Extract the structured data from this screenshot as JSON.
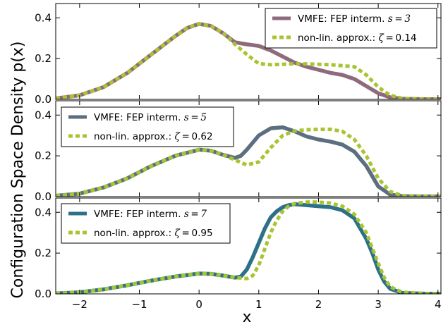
{
  "figure": {
    "ylabel": "Configuration Space Density p(x)",
    "xlabel": "x"
  },
  "colors": {
    "panel1_line": "#8e6a7c",
    "panel2_line": "#5c6f80",
    "panel3_line": "#2d7088",
    "approx": "#a8c431"
  },
  "chart_data": [
    {
      "type": "line",
      "xlim": [
        -2.4,
        4.05
      ],
      "ylim": [
        0,
        0.47
      ],
      "x_ticks": [
        -2,
        -1,
        0,
        1,
        2,
        3,
        4
      ],
      "x_tick_labels": [
        "",
        "",
        "",
        "",
        "",
        "",
        ""
      ],
      "y_ticks": [
        0,
        0.2,
        0.4
      ],
      "y_tick_labels": [
        "0.0",
        "0.2",
        "0.4"
      ],
      "grid": false,
      "legend_position": "top-right",
      "series": [
        {
          "name": "VMFE: FEP interm. s = 3",
          "legend_main": "VMFE: FEP interm. ",
          "legend_math": "s = 3",
          "legend_tail": "",
          "style": "solid",
          "x": [
            -2.4,
            -2.0,
            -1.6,
            -1.2,
            -0.8,
            -0.4,
            -0.2,
            0.0,
            0.2,
            0.4,
            0.6,
            0.8,
            1.0,
            1.2,
            1.4,
            1.6,
            1.8,
            2.0,
            2.2,
            2.4,
            2.6,
            2.8,
            3.0,
            3.2,
            3.4,
            3.8,
            4.05
          ],
          "y": [
            0.005,
            0.02,
            0.06,
            0.13,
            0.22,
            0.31,
            0.35,
            0.37,
            0.36,
            0.325,
            0.28,
            0.27,
            0.262,
            0.24,
            0.21,
            0.18,
            0.16,
            0.145,
            0.13,
            0.12,
            0.1,
            0.065,
            0.03,
            0.01,
            0.003,
            0.001,
            0.001
          ]
        },
        {
          "name": "non-lin. approx.: ζ = 0.14",
          "legend_main": "non-lin. approx.: ",
          "legend_math": "ζ = ",
          "legend_tail": "0.14",
          "style": "dashed",
          "x": [
            -2.4,
            -2.0,
            -1.6,
            -1.2,
            -0.8,
            -0.4,
            -0.2,
            0.0,
            0.2,
            0.4,
            0.5,
            0.6,
            0.8,
            1.0,
            1.2,
            1.4,
            1.6,
            1.8,
            2.0,
            2.2,
            2.4,
            2.6,
            2.8,
            3.0,
            3.2,
            3.4,
            3.8,
            4.05
          ],
          "y": [
            0.005,
            0.02,
            0.06,
            0.13,
            0.22,
            0.31,
            0.35,
            0.37,
            0.36,
            0.325,
            0.3,
            0.27,
            0.22,
            0.175,
            0.17,
            0.172,
            0.175,
            0.174,
            0.172,
            0.17,
            0.165,
            0.16,
            0.12,
            0.06,
            0.02,
            0.005,
            0.001,
            0.001
          ]
        }
      ]
    },
    {
      "type": "line",
      "xlim": [
        -2.4,
        4.05
      ],
      "ylim": [
        0,
        0.47
      ],
      "x_ticks": [
        -2,
        -1,
        0,
        1,
        2,
        3,
        4
      ],
      "x_tick_labels": [
        "",
        "",
        "",
        "",
        "",
        "",
        ""
      ],
      "y_ticks": [
        0,
        0.2,
        0.4
      ],
      "y_tick_labels": [
        "0.0",
        "0.2",
        "0.4"
      ],
      "grid": false,
      "legend_position": "top-left",
      "series": [
        {
          "name": "VMFE: FEP interm. s = 5",
          "legend_main": "VMFE: FEP interm. ",
          "legend_math": "s = 5",
          "legend_tail": "",
          "style": "solid",
          "x": [
            -2.4,
            -2.0,
            -1.6,
            -1.2,
            -0.8,
            -0.4,
            0.0,
            0.2,
            0.4,
            0.6,
            0.7,
            0.8,
            1.0,
            1.2,
            1.4,
            1.6,
            1.8,
            2.0,
            2.2,
            2.4,
            2.6,
            2.8,
            3.0,
            3.2,
            3.4,
            3.8,
            4.05
          ],
          "y": [
            0.004,
            0.015,
            0.045,
            0.09,
            0.15,
            0.2,
            0.23,
            0.225,
            0.205,
            0.19,
            0.2,
            0.23,
            0.3,
            0.335,
            0.34,
            0.32,
            0.295,
            0.28,
            0.27,
            0.255,
            0.22,
            0.15,
            0.05,
            0.01,
            0.002,
            0.001,
            0.001
          ]
        },
        {
          "name": "non-lin. approx.: ζ = 0.62",
          "legend_main": "non-lin. approx.: ",
          "legend_math": "ζ = ",
          "legend_tail": "0.62",
          "style": "dashed",
          "x": [
            -2.4,
            -2.0,
            -1.6,
            -1.2,
            -0.8,
            -0.4,
            0.0,
            0.2,
            0.4,
            0.6,
            0.8,
            1.0,
            1.2,
            1.4,
            1.6,
            1.8,
            2.0,
            2.2,
            2.4,
            2.6,
            2.8,
            3.0,
            3.2,
            3.4,
            3.8,
            4.05
          ],
          "y": [
            0.004,
            0.015,
            0.045,
            0.09,
            0.15,
            0.2,
            0.23,
            0.225,
            0.205,
            0.18,
            0.155,
            0.17,
            0.24,
            0.3,
            0.322,
            0.328,
            0.33,
            0.33,
            0.32,
            0.28,
            0.2,
            0.09,
            0.025,
            0.005,
            0.001,
            0.001
          ]
        }
      ]
    },
    {
      "type": "line",
      "xlim": [
        -2.4,
        4.05
      ],
      "ylim": [
        0,
        0.47
      ],
      "x_ticks": [
        -2,
        -1,
        0,
        1,
        2,
        3,
        4
      ],
      "x_tick_labels": [
        "−2",
        "−1",
        "0",
        "1",
        "2",
        "3",
        "4"
      ],
      "y_ticks": [
        0,
        0.2,
        0.4
      ],
      "y_tick_labels": [
        "0.0",
        "0.2",
        "0.4"
      ],
      "grid": false,
      "legend_position": "top-left",
      "series": [
        {
          "name": "VMFE: FEP interm. s = 7",
          "legend_main": "VMFE: FEP interm. ",
          "legend_math": "s = 7",
          "legend_tail": "",
          "style": "solid",
          "x": [
            -2.4,
            -2.0,
            -1.6,
            -1.2,
            -0.8,
            -0.4,
            0.0,
            0.2,
            0.4,
            0.6,
            0.7,
            0.8,
            0.9,
            1.0,
            1.1,
            1.2,
            1.3,
            1.4,
            1.5,
            1.6,
            1.8,
            2.0,
            2.2,
            2.4,
            2.6,
            2.8,
            2.9,
            3.0,
            3.1,
            3.2,
            3.4,
            3.8,
            4.05
          ],
          "y": [
            0.002,
            0.008,
            0.022,
            0.042,
            0.065,
            0.085,
            0.1,
            0.098,
            0.09,
            0.08,
            0.085,
            0.12,
            0.18,
            0.25,
            0.32,
            0.375,
            0.405,
            0.425,
            0.435,
            0.44,
            0.435,
            0.43,
            0.425,
            0.41,
            0.37,
            0.27,
            0.2,
            0.12,
            0.06,
            0.025,
            0.005,
            0.001,
            0.001
          ]
        },
        {
          "name": "non-lin. approx.: ζ = 0.95",
          "legend_main": "non-lin. approx.: ",
          "legend_math": "ζ = ",
          "legend_tail": "0.95",
          "style": "dashed",
          "x": [
            -2.4,
            -2.0,
            -1.6,
            -1.2,
            -0.8,
            -0.4,
            0.0,
            0.2,
            0.4,
            0.6,
            0.8,
            0.9,
            1.0,
            1.1,
            1.2,
            1.3,
            1.4,
            1.5,
            1.6,
            1.8,
            2.0,
            2.2,
            2.4,
            2.6,
            2.8,
            3.0,
            3.1,
            3.2,
            3.4,
            3.8,
            4.05
          ],
          "y": [
            0.002,
            0.008,
            0.022,
            0.042,
            0.065,
            0.085,
            0.1,
            0.098,
            0.09,
            0.08,
            0.075,
            0.09,
            0.14,
            0.22,
            0.3,
            0.36,
            0.405,
            0.43,
            0.443,
            0.45,
            0.45,
            0.445,
            0.43,
            0.39,
            0.3,
            0.15,
            0.08,
            0.035,
            0.008,
            0.001,
            0.001
          ]
        }
      ]
    }
  ]
}
